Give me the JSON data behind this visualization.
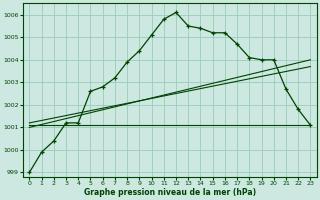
{
  "title": "Graphe pression niveau de la mer (hPa)",
  "bg_color": "#cce8e0",
  "grid_color": "#99ccbb",
  "line_color": "#004400",
  "xlim": [
    -0.5,
    23.5
  ],
  "ylim": [
    998.8,
    1006.5
  ],
  "yticks": [
    999,
    1000,
    1001,
    1002,
    1003,
    1004,
    1005,
    1006
  ],
  "xticks": [
    0,
    1,
    2,
    3,
    4,
    5,
    6,
    7,
    8,
    9,
    10,
    11,
    12,
    13,
    14,
    15,
    16,
    17,
    18,
    19,
    20,
    21,
    22,
    23
  ],
  "main_x": [
    0,
    1,
    2,
    3,
    4,
    5,
    6,
    7,
    8,
    9,
    10,
    11,
    12,
    13,
    14,
    15,
    16,
    17,
    18,
    19,
    20,
    21,
    22,
    23
  ],
  "main_y": [
    999.0,
    999.9,
    1000.4,
    1001.2,
    1001.2,
    1002.6,
    1002.8,
    1003.2,
    1003.9,
    1004.4,
    1005.1,
    1005.8,
    1006.1,
    1005.5,
    1005.4,
    1005.2,
    1005.2,
    1004.7,
    1004.1,
    1004.0,
    1004.0,
    1002.7,
    1001.8,
    1001.1
  ],
  "smooth_line1_x": [
    0,
    23
  ],
  "smooth_line1_y": [
    1001.0,
    1004.0
  ],
  "smooth_line2_x": [
    0,
    23
  ],
  "smooth_line2_y": [
    1001.2,
    1003.7
  ],
  "hline_x": [
    0,
    23
  ],
  "hline_y": [
    1001.1,
    1001.1
  ],
  "figsize": [
    3.2,
    2.0
  ],
  "dpi": 100
}
